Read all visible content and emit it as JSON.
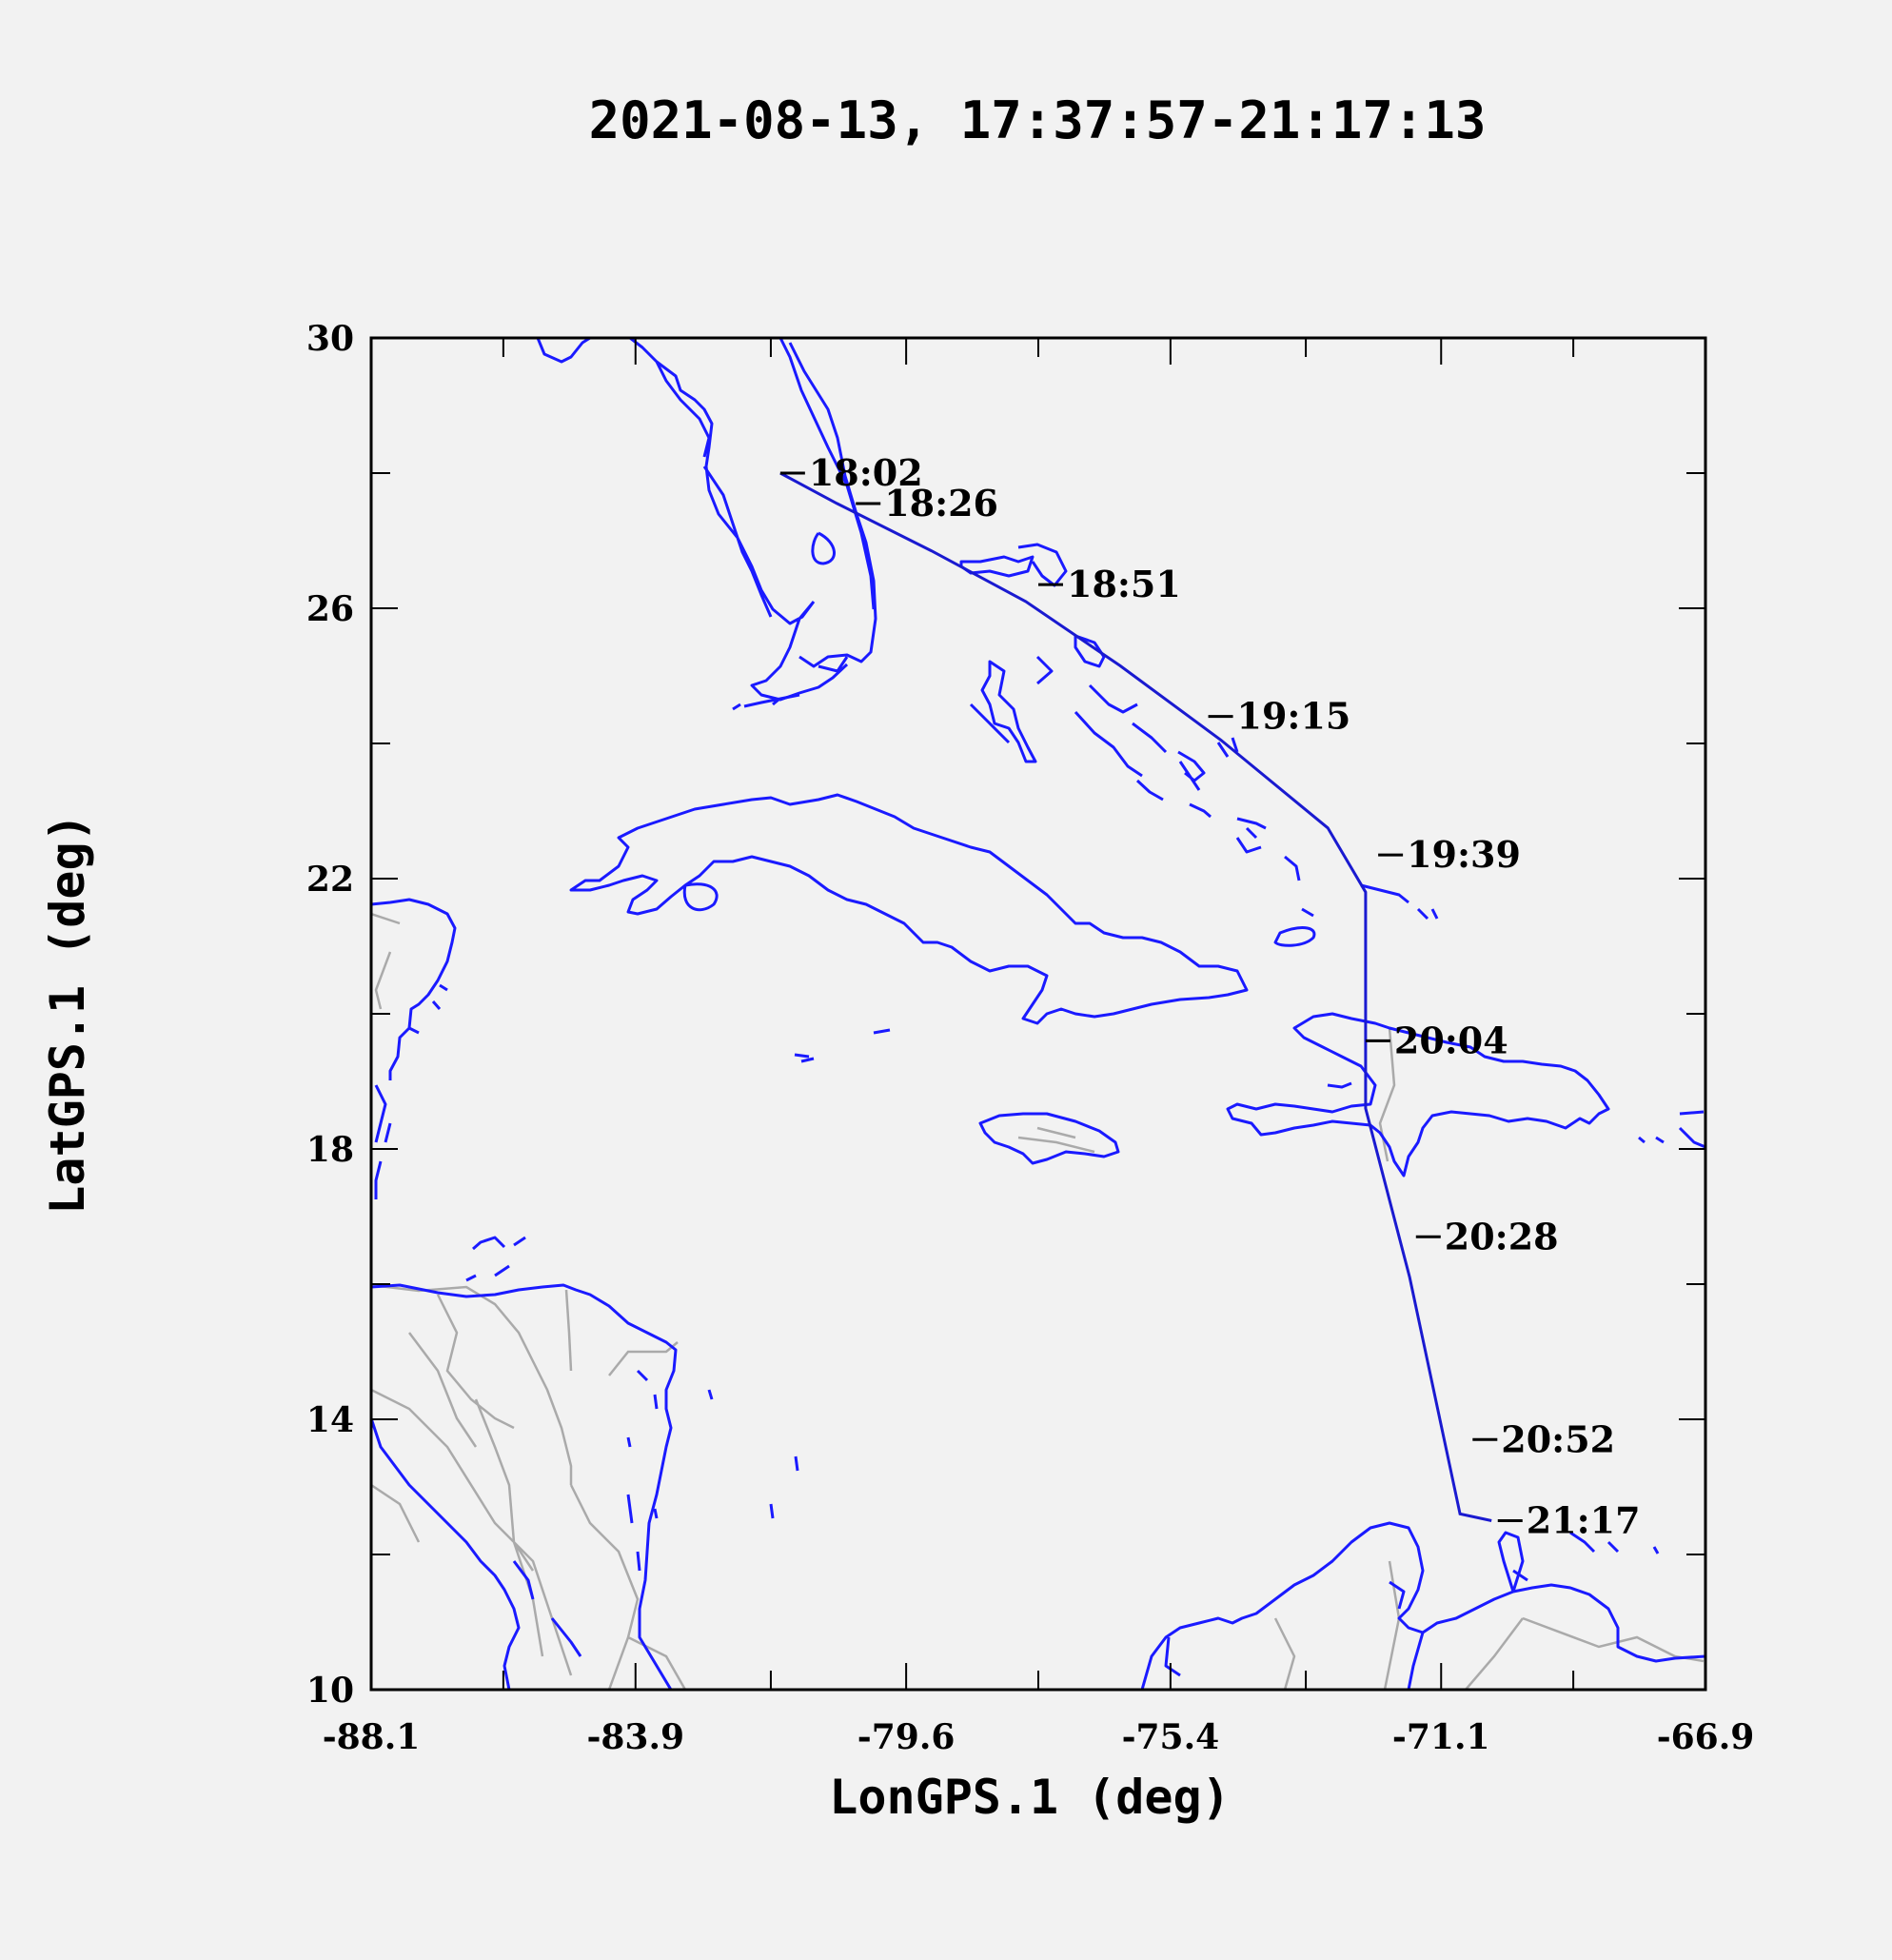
{
  "chart_data": {
    "type": "map-track",
    "title": "2021-08-13, 17:37:57-21:17:13",
    "xlabel": "LonGPS.1 (deg)",
    "ylabel": "LatGPS.1 (deg)",
    "xlim": [
      -88.1,
      -66.9
    ],
    "ylim": [
      10,
      30
    ],
    "x_ticks": [
      -88.1,
      -83.9,
      -79.6,
      -75.4,
      -71.1,
      -66.9
    ],
    "y_ticks": [
      10,
      14,
      18,
      22,
      26,
      30
    ],
    "track_color": "#1a1ad0",
    "coast_color": "#1a1aff",
    "border_color": "#aaaaaa",
    "track": [
      [
        -81.6,
        28.0
      ],
      [
        -80.7,
        27.55
      ],
      [
        -79.2,
        26.85
      ],
      [
        -77.7,
        26.1
      ],
      [
        -76.2,
        25.15
      ],
      [
        -74.6,
        24.05
      ],
      [
        -72.9,
        22.75
      ],
      [
        -72.3,
        21.8
      ],
      [
        -72.3,
        18.6
      ],
      [
        -71.6,
        16.1
      ],
      [
        -70.8,
        12.6
      ],
      [
        -70.3,
        12.5
      ]
    ],
    "time_marks": [
      {
        "label": "18:02",
        "lon": -81.6,
        "lat": 28.0
      },
      {
        "label": "18:26",
        "lon": -80.4,
        "lat": 27.55
      },
      {
        "label": "18:51",
        "lon": -77.5,
        "lat": 26.35
      },
      {
        "label": "19:15",
        "lon": -74.8,
        "lat": 24.4
      },
      {
        "label": "19:39",
        "lon": -72.1,
        "lat": 22.35
      },
      {
        "label": "20:04",
        "lon": -72.3,
        "lat": 19.6
      },
      {
        "label": "20:28",
        "lon": -71.5,
        "lat": 16.7
      },
      {
        "label": "20:52",
        "lon": -70.6,
        "lat": 13.7
      },
      {
        "label": "21:17",
        "lon": -70.2,
        "lat": 12.5
      }
    ]
  }
}
